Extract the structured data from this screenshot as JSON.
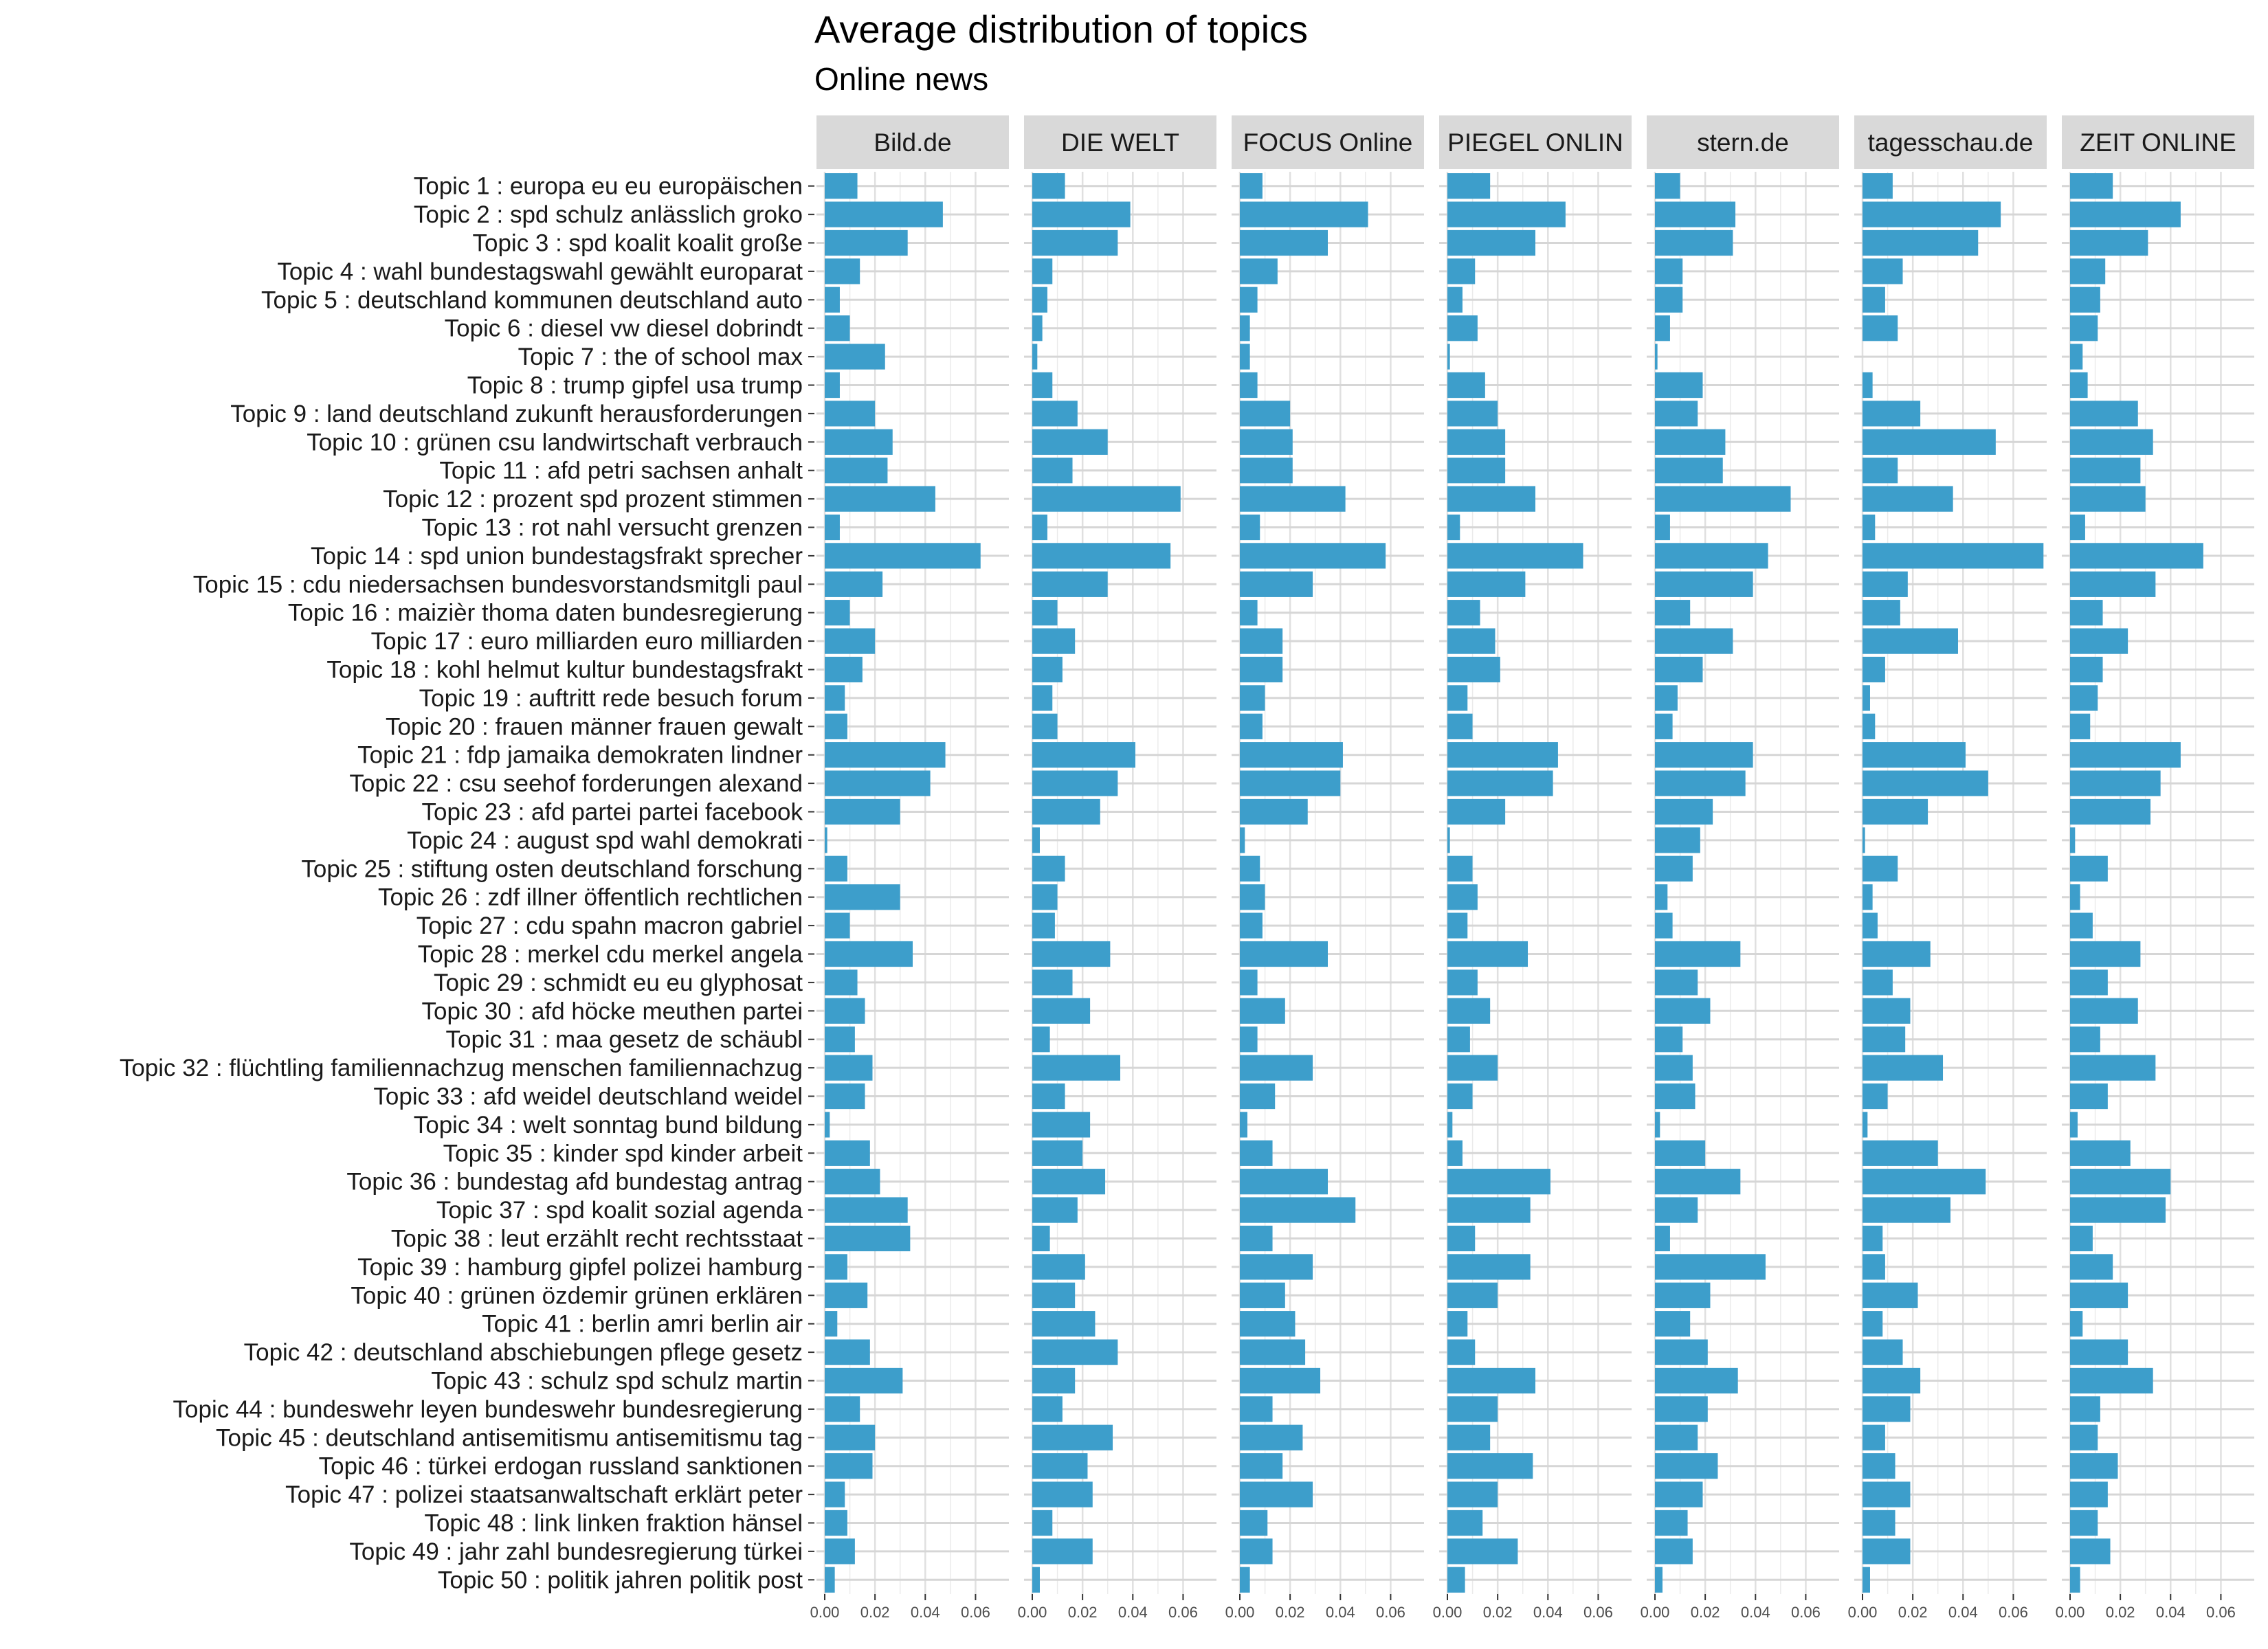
{
  "chart_data": {
    "type": "bar",
    "orientation": "horizontal",
    "title": "Average distribution of topics",
    "subtitle": "Online news",
    "xlabel": "",
    "ylabel": "",
    "xlim": [
      0,
      0.07
    ],
    "xticks": [
      "0.00",
      "0.02",
      "0.04",
      "0.06"
    ],
    "grid": true,
    "bar_color": "#3D9ECB",
    "categories": [
      "Topic 1 : europa eu eu europäischen",
      "Topic 2 : spd schulz anlässlich groko",
      "Topic 3 : spd koalit koalit große",
      "Topic 4 : wahl bundestagswahl gewählt europarat",
      "Topic 5 : deutschland kommunen deutschland auto",
      "Topic 6 : diesel vw diesel dobrindt",
      "Topic 7 : the of school max",
      "Topic 8 : trump gipfel usa trump",
      "Topic 9 : land deutschland zukunft herausforderungen",
      "Topic 10 : grünen csu landwirtschaft verbrauch",
      "Topic 11 : afd petri sachsen anhalt",
      "Topic 12 : prozent spd prozent stimmen",
      "Topic 13 : rot nahl versucht grenzen",
      "Topic 14 : spd union bundestagsfrakt sprecher",
      "Topic 15 : cdu niedersachsen bundesvorstandsmitgli paul",
      "Topic 16 : maizièr thoma daten bundesregierung",
      "Topic 17 : euro milliarden euro milliarden",
      "Topic 18 : kohl helmut kultur bundestagsfrakt",
      "Topic 19 : auftritt rede besuch forum",
      "Topic 20 : frauen männer frauen gewalt",
      "Topic 21 : fdp jamaika demokraten lindner",
      "Topic 22 : csu seehof forderungen alexand",
      "Topic 23 : afd partei partei facebook",
      "Topic 24 : august spd wahl demokrati",
      "Topic 25 : stiftung osten deutschland forschung",
      "Topic 26 : zdf illner öffentlich rechtlichen",
      "Topic 27 : cdu spahn macron gabriel",
      "Topic 28 : merkel cdu merkel angela",
      "Topic 29 : schmidt eu eu glyphosat",
      "Topic 30 : afd höcke meuthen partei",
      "Topic 31 : maa gesetz de schäubl",
      "Topic 32 : flüchtling familiennachzug menschen familiennachzug",
      "Topic 33 : afd weidel deutschland weidel",
      "Topic 34 : welt sonntag bund bildung",
      "Topic 35 : kinder spd kinder arbeit",
      "Topic 36 : bundestag afd bundestag antrag",
      "Topic 37 : spd koalit sozial agenda",
      "Topic 38 : leut erzählt recht rechtsstaat",
      "Topic 39 : hamburg gipfel polizei hamburg",
      "Topic 40 : grünen özdemir grünen erklären",
      "Topic 41 : berlin amri berlin air",
      "Topic 42 : deutschland abschiebungen pflege gesetz",
      "Topic 43 : schulz spd schulz martin",
      "Topic 44 : bundeswehr leyen bundeswehr bundesregierung",
      "Topic 45 : deutschland antisemitismu antisemitismu tag",
      "Topic 46 : türkei erdogan russland sanktionen",
      "Topic 47 : polizei staatsanwaltschaft erklärt peter",
      "Topic 48 : link linken fraktion hänsel",
      "Topic 49 : jahr zahl bundesregierung türkei",
      "Topic 50 : politik jahren politik post"
    ],
    "series": [
      {
        "name": "Bild.de",
        "values": [
          0.013,
          0.047,
          0.033,
          0.014,
          0.006,
          0.01,
          0.024,
          0.006,
          0.02,
          0.027,
          0.025,
          0.044,
          0.006,
          0.062,
          0.023,
          0.01,
          0.02,
          0.015,
          0.008,
          0.009,
          0.048,
          0.042,
          0.03,
          0.001,
          0.009,
          0.03,
          0.01,
          0.035,
          0.013,
          0.016,
          0.012,
          0.019,
          0.016,
          0.002,
          0.018,
          0.022,
          0.033,
          0.034,
          0.009,
          0.017,
          0.005,
          0.018,
          0.031,
          0.014,
          0.02,
          0.019,
          0.008,
          0.009,
          0.012,
          0.004
        ]
      },
      {
        "name": "DIE WELT",
        "values": [
          0.013,
          0.039,
          0.034,
          0.008,
          0.006,
          0.004,
          0.002,
          0.008,
          0.018,
          0.03,
          0.016,
          0.059,
          0.006,
          0.055,
          0.03,
          0.01,
          0.017,
          0.012,
          0.008,
          0.01,
          0.041,
          0.034,
          0.027,
          0.003,
          0.013,
          0.01,
          0.009,
          0.031,
          0.016,
          0.023,
          0.007,
          0.035,
          0.013,
          0.023,
          0.02,
          0.029,
          0.018,
          0.007,
          0.021,
          0.017,
          0.025,
          0.034,
          0.017,
          0.012,
          0.032,
          0.022,
          0.024,
          0.008,
          0.024,
          0.003
        ]
      },
      {
        "name": "FOCUS Online",
        "values": [
          0.009,
          0.051,
          0.035,
          0.015,
          0.007,
          0.004,
          0.004,
          0.007,
          0.02,
          0.021,
          0.021,
          0.042,
          0.008,
          0.058,
          0.029,
          0.007,
          0.017,
          0.017,
          0.01,
          0.009,
          0.041,
          0.04,
          0.027,
          0.002,
          0.008,
          0.01,
          0.009,
          0.035,
          0.007,
          0.018,
          0.007,
          0.029,
          0.014,
          0.003,
          0.013,
          0.035,
          0.046,
          0.013,
          0.029,
          0.018,
          0.022,
          0.026,
          0.032,
          0.013,
          0.025,
          0.017,
          0.029,
          0.011,
          0.013,
          0.004
        ]
      },
      {
        "name": "PIEGEL ONLIN",
        "values": [
          0.017,
          0.047,
          0.035,
          0.011,
          0.006,
          0.012,
          0.001,
          0.015,
          0.02,
          0.023,
          0.023,
          0.035,
          0.005,
          0.054,
          0.031,
          0.013,
          0.019,
          0.021,
          0.008,
          0.01,
          0.044,
          0.042,
          0.023,
          0.001,
          0.01,
          0.012,
          0.008,
          0.032,
          0.012,
          0.017,
          0.009,
          0.02,
          0.01,
          0.002,
          0.006,
          0.041,
          0.033,
          0.011,
          0.033,
          0.02,
          0.008,
          0.011,
          0.035,
          0.02,
          0.017,
          0.034,
          0.02,
          0.014,
          0.028,
          0.007
        ]
      },
      {
        "name": "stern.de",
        "values": [
          0.01,
          0.032,
          0.031,
          0.011,
          0.011,
          0.006,
          0.001,
          0.019,
          0.017,
          0.028,
          0.027,
          0.054,
          0.006,
          0.045,
          0.039,
          0.014,
          0.031,
          0.019,
          0.009,
          0.007,
          0.039,
          0.036,
          0.023,
          0.018,
          0.015,
          0.005,
          0.007,
          0.034,
          0.017,
          0.022,
          0.011,
          0.015,
          0.016,
          0.002,
          0.02,
          0.034,
          0.017,
          0.006,
          0.044,
          0.022,
          0.014,
          0.021,
          0.033,
          0.021,
          0.017,
          0.025,
          0.019,
          0.013,
          0.015,
          0.003
        ]
      },
      {
        "name": "tagesschau.de",
        "values": [
          0.012,
          0.055,
          0.046,
          0.016,
          0.009,
          0.014,
          0.0,
          0.004,
          0.023,
          0.053,
          0.014,
          0.036,
          0.005,
          0.072,
          0.018,
          0.015,
          0.038,
          0.009,
          0.003,
          0.005,
          0.041,
          0.05,
          0.026,
          0.001,
          0.014,
          0.004,
          0.006,
          0.027,
          0.012,
          0.019,
          0.017,
          0.032,
          0.01,
          0.002,
          0.03,
          0.049,
          0.035,
          0.008,
          0.009,
          0.022,
          0.008,
          0.016,
          0.023,
          0.019,
          0.009,
          0.013,
          0.019,
          0.013,
          0.019,
          0.003
        ]
      },
      {
        "name": "ZEIT ONLINE",
        "values": [
          0.017,
          0.044,
          0.031,
          0.014,
          0.012,
          0.011,
          0.005,
          0.007,
          0.027,
          0.033,
          0.028,
          0.03,
          0.006,
          0.053,
          0.034,
          0.013,
          0.023,
          0.013,
          0.011,
          0.008,
          0.044,
          0.036,
          0.032,
          0.002,
          0.015,
          0.004,
          0.009,
          0.028,
          0.015,
          0.027,
          0.012,
          0.034,
          0.015,
          0.003,
          0.024,
          0.04,
          0.038,
          0.009,
          0.017,
          0.023,
          0.005,
          0.023,
          0.033,
          0.012,
          0.011,
          0.019,
          0.015,
          0.011,
          0.016,
          0.004
        ]
      }
    ]
  }
}
